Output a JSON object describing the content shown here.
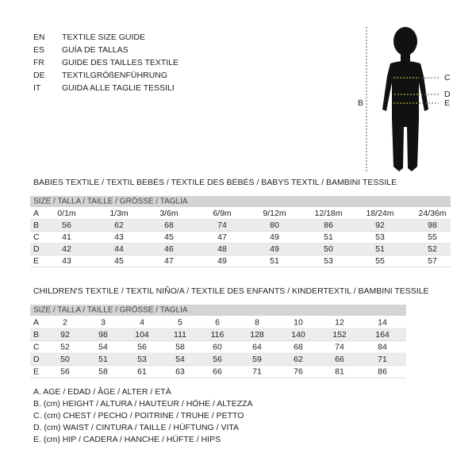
{
  "languages": [
    {
      "code": "EN",
      "text": "TEXTILE SIZE GUIDE"
    },
    {
      "code": "ES",
      "text": "GUÍA DE TALLAS"
    },
    {
      "code": "FR",
      "text": "GUIDE DES TAILLES TEXTILE"
    },
    {
      "code": "DE",
      "text": "TEXTILGRÖßENFÜHRUNG"
    },
    {
      "code": "IT",
      "text": "GUIDA ALLE TAGLIE TESSILI"
    }
  ],
  "figure": {
    "labels": [
      "B",
      "C",
      "D",
      "E"
    ]
  },
  "babies": {
    "title": "BABIES TEXTILE / TEXTIL BEBÉS / TEXTILE DES BÉBÉS / BABYS TEXTIL  / BAMBINI TESSILE",
    "header": "SIZE / TALLA / TAILLE / GRÖSSE / TAGLIA",
    "rows": [
      [
        "A",
        "0/1m",
        "1/3m",
        "3/6m",
        "6/9m",
        "9/12m",
        "12/18m",
        "18/24m",
        "24/36m"
      ],
      [
        "B",
        56,
        62,
        68,
        74,
        80,
        86,
        92,
        98
      ],
      [
        "C",
        41,
        43,
        45,
        47,
        49,
        51,
        53,
        55
      ],
      [
        "D",
        42,
        44,
        46,
        48,
        49,
        50,
        51,
        52
      ],
      [
        "E",
        43,
        45,
        47,
        49,
        51,
        53,
        55,
        57
      ]
    ]
  },
  "children": {
    "title": "CHILDREN'S TEXTILE / TEXTIL NIÑO/A / TEXTILE DES ENFANTS / KINDERTEXTIL / BAMBINI TESSILE",
    "header": "SIZE / TALLA / TAILLE / GRÖSSE / TAGLIA",
    "rows": [
      [
        "A",
        2,
        3,
        4,
        5,
        6,
        8,
        10,
        12,
        14
      ],
      [
        "B",
        92,
        98,
        104,
        111,
        116,
        128,
        140,
        152,
        164
      ],
      [
        "C",
        52,
        54,
        56,
        58,
        60,
        64,
        68,
        74,
        84
      ],
      [
        "D",
        50,
        51,
        53,
        54,
        56,
        59,
        62,
        66,
        71
      ],
      [
        "E",
        56,
        58,
        61,
        63,
        66,
        71,
        76,
        81,
        86
      ]
    ]
  },
  "legend": [
    "A. AGE / EDAD / ÂGE / ALTER / ETÀ",
    "B. (cm) HEIGHT / ALTURA / HAUTEUR / HÖHE / ALTEZZA",
    "C. (cm) CHEST / PECHO / POITRINE / TRUHE / PETTO",
    "D. (cm) WAIST / CINTURA / TAILLE / HÜFTUNG / VITA",
    "E. (cm) HIP / CADERA / HANCHE / HÜFTE / HIPS"
  ]
}
